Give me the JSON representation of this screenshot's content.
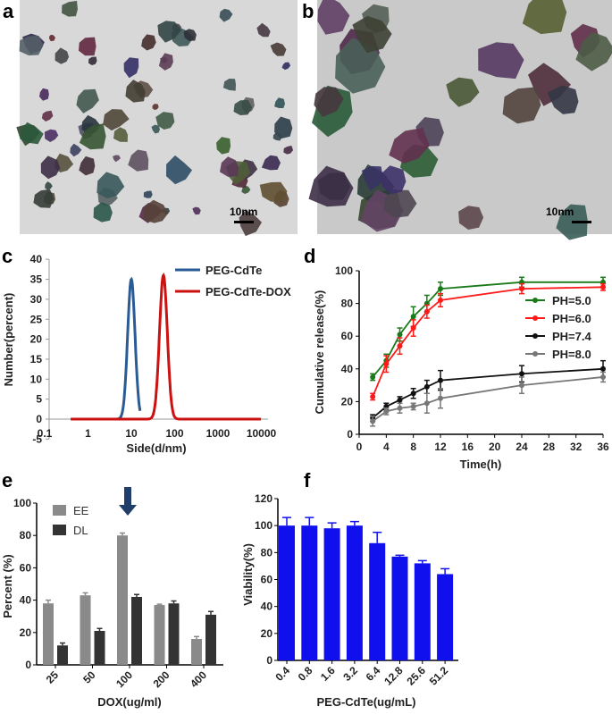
{
  "panels": {
    "a": {
      "label": "a",
      "scale_bar": "10nm"
    },
    "b": {
      "label": "b",
      "scale_bar": "10nm"
    },
    "c": {
      "label": "c"
    },
    "d": {
      "label": "d"
    },
    "e": {
      "label": "e"
    },
    "f": {
      "label": "f"
    }
  },
  "colors": {
    "blue_curve": "#2a5b94",
    "red_curve": "#cc1111",
    "green": "#1a7a1a",
    "red": "#ff1a1a",
    "black": "#111111",
    "gray": "#777777",
    "ee": "#8a8a8a",
    "dl": "#333333",
    "viability": "#1010ee",
    "arrow": "#1f3f6a"
  },
  "chart_data": [
    {
      "id": "c",
      "type": "line",
      "xlabel": "Side(d/nm)",
      "ylabel": "Number(percent)",
      "xscale": "log",
      "xlim": [
        0.1,
        10000
      ],
      "ylim": [
        -5,
        40
      ],
      "xticks": [
        "0.1",
        "1",
        "10",
        "100",
        "1000",
        "10000"
      ],
      "yticks": [
        "-5",
        "0",
        "5",
        "10",
        "15",
        "20",
        "25",
        "30",
        "35",
        "40"
      ],
      "legend": "top-right",
      "series": [
        {
          "name": "PEG-CdTe",
          "peak_x": 10,
          "peak_y": 35,
          "range": [
            0.4,
            16
          ]
        },
        {
          "name": "PEG-CdTe-DOX",
          "peak_x": 55,
          "peak_y": 36,
          "range": [
            0.4,
            10000
          ]
        }
      ]
    },
    {
      "id": "d",
      "type": "line",
      "xlabel": "Time(h)",
      "ylabel": "Cumulative release(%)",
      "xlim": [
        0,
        36
      ],
      "ylim": [
        0,
        100
      ],
      "xticks": [
        "0",
        "4",
        "8",
        "12",
        "16",
        "20",
        "24",
        "28",
        "32",
        "36"
      ],
      "yticks": [
        "0",
        "20",
        "40",
        "60",
        "80",
        "100"
      ],
      "legend": "right",
      "x": [
        2,
        4,
        6,
        8,
        10,
        12,
        24,
        36
      ],
      "series": [
        {
          "name": "PH=5.0",
          "values": [
            35,
            45,
            61,
            72,
            80,
            89,
            93,
            93
          ],
          "err": [
            2,
            4,
            4,
            6,
            5,
            4,
            3,
            3
          ]
        },
        {
          "name": "PH=6.0",
          "values": [
            23,
            43,
            54,
            65,
            75,
            82,
            89,
            90
          ],
          "err": [
            2,
            5,
            5,
            5,
            4,
            4,
            3,
            2
          ]
        },
        {
          "name": "PH=7.4",
          "values": [
            10,
            17,
            21,
            25,
            29,
            33,
            37,
            40
          ],
          "err": [
            2,
            2,
            2,
            3,
            4,
            6,
            5,
            5
          ]
        },
        {
          "name": "PH=8.0",
          "values": [
            8,
            14,
            16,
            17,
            19,
            22,
            30,
            35
          ],
          "err": [
            3,
            2,
            3,
            2,
            6,
            6,
            5,
            3
          ]
        }
      ]
    },
    {
      "id": "e",
      "type": "bar",
      "xlabel": "DOX(ug/ml)",
      "ylabel": "Percent (%)",
      "ylim": [
        0,
        100
      ],
      "yticks": [
        "0",
        "20",
        "40",
        "60",
        "80",
        "100"
      ],
      "categories": [
        "25",
        "50",
        "100",
        "200",
        "400"
      ],
      "legend": "top-left",
      "annotation": "arrow above 100",
      "series": [
        {
          "name": "EE",
          "values": [
            38,
            43,
            80,
            37,
            16
          ],
          "err": [
            2,
            1.5,
            1.5,
            0.5,
            1.5
          ]
        },
        {
          "name": "DL",
          "values": [
            12,
            21,
            42,
            38,
            31
          ],
          "err": [
            1.5,
            1.5,
            1.5,
            1.5,
            2
          ]
        }
      ]
    },
    {
      "id": "f",
      "type": "bar",
      "xlabel": "PEG-CdTe(ug/mL)",
      "ylabel": "Viability(%)",
      "ylim": [
        0,
        120
      ],
      "yticks": [
        "0",
        "20",
        "40",
        "60",
        "80",
        "100",
        "120"
      ],
      "categories": [
        "0.4",
        "0.8",
        "1.6",
        "3.2",
        "6.4",
        "12.8",
        "25.6",
        "51.2"
      ],
      "values": [
        100,
        100,
        98,
        100,
        87,
        77,
        72,
        64
      ],
      "err": [
        6,
        6,
        4,
        3,
        8,
        1,
        2,
        4
      ]
    }
  ]
}
